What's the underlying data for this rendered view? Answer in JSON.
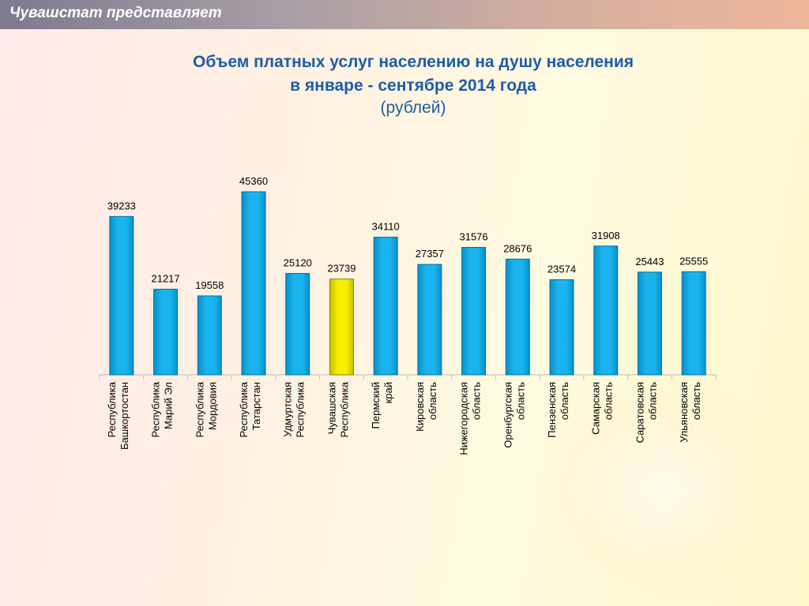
{
  "header": {
    "title": "Чувашстат представляет"
  },
  "chart_data": {
    "type": "bar",
    "title_line1": "Объем платных услуг населению на душу населения",
    "title_line2": "в январе - сентябре 2014 года",
    "subtitle": "(рублей)",
    "xlabel": "",
    "ylabel": "",
    "ylim": [
      0,
      46000
    ],
    "grid": false,
    "legend": "none",
    "categories": [
      [
        "Республика",
        "Башкортостан"
      ],
      [
        "Республика",
        "Марий Эл"
      ],
      [
        "Республика",
        "Мордовия"
      ],
      [
        "Республика",
        "Татарстан"
      ],
      [
        "Удмуртская",
        "Республика"
      ],
      [
        "Чувашская",
        "Республика"
      ],
      [
        "Пермский",
        "край"
      ],
      [
        "Кировская",
        "область"
      ],
      [
        "Нижегородская",
        "область"
      ],
      [
        "Оренбургская",
        "область"
      ],
      [
        "Пензенская",
        "область"
      ],
      [
        "Самарская",
        "область"
      ],
      [
        "Саратовская",
        "область"
      ],
      [
        "Ульяновская",
        "область"
      ]
    ],
    "values": [
      39233,
      21217,
      19558,
      45360,
      25120,
      23739,
      34110,
      27357,
      31576,
      28676,
      23574,
      31908,
      25443,
      25555
    ],
    "highlight_index": 5,
    "colors": {
      "bar": "#19b4ee",
      "bar_dark": "#0a8fc8",
      "highlight": "#f7f000",
      "highlight_dark": "#c9bf00"
    }
  }
}
